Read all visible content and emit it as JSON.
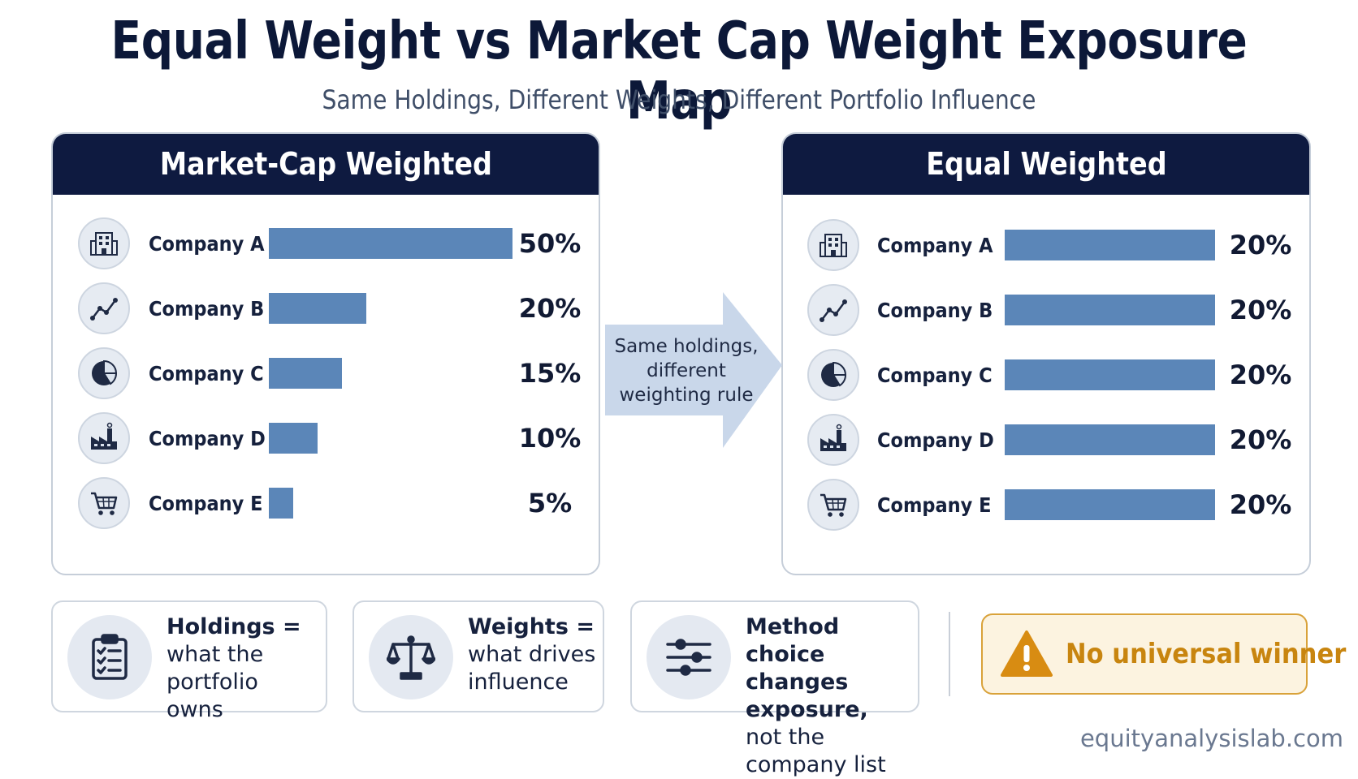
{
  "title": "Equal Weight vs Market Cap Weight Exposure Map",
  "subtitle": "Same Holdings, Different Weights, Different Portfolio Influence",
  "arrow_label": [
    "Same holdings,",
    "different",
    "weighting rule"
  ],
  "colors": {
    "bar": "#5b86b8",
    "header": "#0e1a40",
    "icon": "#1f2a44",
    "warning": "#d88c12"
  },
  "chart_data": [
    {
      "type": "bar",
      "title": "Market-Cap Weighted",
      "categories": [
        "Company A",
        "Company B",
        "Company C",
        "Company D",
        "Company E"
      ],
      "icons": [
        "building-icon",
        "trend-line-icon",
        "pie-chart-icon",
        "factory-icon",
        "shopping-cart-icon"
      ],
      "values": [
        50,
        20,
        15,
        10,
        5
      ],
      "labels": [
        "50%",
        "20%",
        "15%",
        "10%",
        "5%"
      ],
      "unit": "%",
      "xlim": [
        0,
        50
      ]
    },
    {
      "type": "bar",
      "title": "Equal Weighted",
      "categories": [
        "Company A",
        "Company B",
        "Company C",
        "Company D",
        "Company E"
      ],
      "icons": [
        "building-icon",
        "trend-line-icon",
        "pie-chart-icon",
        "factory-icon",
        "shopping-cart-icon"
      ],
      "values": [
        20,
        20,
        20,
        20,
        20
      ],
      "labels": [
        "20%",
        "20%",
        "20%",
        "20%",
        "20%"
      ],
      "unit": "%",
      "xlim": [
        0,
        20
      ]
    }
  ],
  "cards": [
    {
      "icon": "clipboard-checklist-icon",
      "line1": "Holdings =",
      "line2": "what the portfolio",
      "line3": "owns"
    },
    {
      "icon": "balance-scale-icon",
      "line1": "Weights =",
      "line2": "what drives",
      "line3": "influence"
    },
    {
      "icon": "sliders-icon",
      "line1": "Method choice",
      "line2": "changes exposure,",
      "line3": "not the company list"
    }
  ],
  "warning": {
    "icon": "warning-triangle-icon",
    "text": "No universal winner"
  },
  "footer": "equityanalysislab.com"
}
